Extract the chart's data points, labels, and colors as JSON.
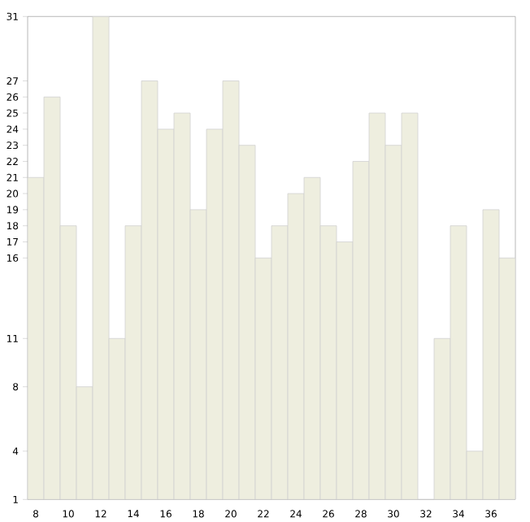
{
  "chart_data": {
    "type": "bar",
    "categories": [
      "8",
      null,
      "10",
      null,
      "12",
      null,
      "14",
      null,
      "16",
      null,
      "18",
      null,
      "20",
      null,
      "22",
      null,
      "24",
      null,
      "26",
      null,
      "28",
      null,
      "30",
      null,
      "32",
      null,
      "34",
      null,
      "36",
      null
    ],
    "values": [
      21,
      26,
      18,
      8,
      31,
      11,
      18,
      27,
      24,
      25,
      19,
      24,
      27,
      23,
      16,
      18,
      20,
      21,
      18,
      17,
      22,
      25,
      23,
      25,
      null,
      11,
      18,
      4,
      19,
      16
    ],
    "color": "#eeeedf",
    "ylim": [
      1,
      31
    ],
    "yticks": [
      1,
      4,
      8,
      11,
      16,
      17,
      18,
      19,
      20,
      21,
      22,
      23,
      24,
      25,
      26,
      27,
      31
    ],
    "grid": false
  }
}
